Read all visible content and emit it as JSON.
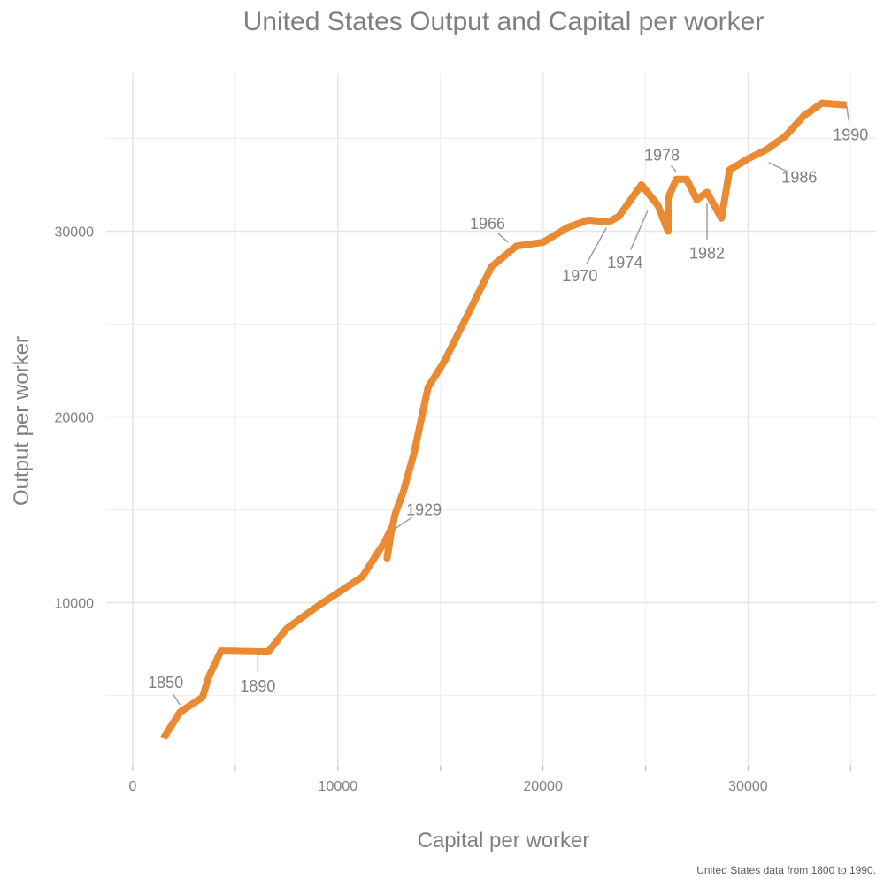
{
  "chart_data": {
    "type": "line",
    "title": "United States Output and Capital per worker",
    "xlabel": "Capital per worker",
    "ylabel": "Output per worker",
    "caption": "United States data from 1800 to 1990.",
    "xlim": [
      0,
      36000
    ],
    "ylim": [
      2000,
      38000
    ],
    "x_ticks": [
      0,
      10000,
      20000,
      30000
    ],
    "y_ticks": [
      10000,
      20000,
      30000
    ],
    "grid": true,
    "series_color": "#ea8a33",
    "series": [
      {
        "points": [
          [
            1500,
            2700
          ],
          [
            2300,
            4100
          ],
          [
            3400,
            4900
          ],
          [
            3700,
            6000
          ],
          [
            4300,
            7400
          ],
          [
            6600,
            7350
          ],
          [
            7500,
            8600
          ],
          [
            9000,
            9800
          ],
          [
            11200,
            11400
          ],
          [
            12300,
            13300
          ],
          [
            12600,
            14000
          ],
          [
            12400,
            12400
          ],
          [
            12600,
            13800
          ],
          [
            12800,
            14800
          ],
          [
            13200,
            16000
          ],
          [
            13700,
            18000
          ],
          [
            14400,
            21600
          ],
          [
            15200,
            23000
          ],
          [
            17500,
            28100
          ],
          [
            18700,
            29200
          ],
          [
            20000,
            29400
          ],
          [
            21200,
            30200
          ],
          [
            22200,
            30600
          ],
          [
            23200,
            30500
          ],
          [
            23700,
            30800
          ],
          [
            24800,
            32500
          ],
          [
            25600,
            31400
          ],
          [
            26100,
            30000
          ],
          [
            26100,
            31800
          ],
          [
            26500,
            32800
          ],
          [
            27000,
            32800
          ],
          [
            27500,
            31700
          ],
          [
            28000,
            32100
          ],
          [
            28700,
            30700
          ],
          [
            29100,
            33300
          ],
          [
            30000,
            33900
          ],
          [
            30900,
            34400
          ],
          [
            31800,
            35100
          ],
          [
            32700,
            36200
          ],
          [
            33600,
            36900
          ],
          [
            34800,
            36800
          ]
        ]
      }
    ],
    "annotations": [
      {
        "label": "1850",
        "x": 2300,
        "y": 4500,
        "text_x": 1600,
        "text_y": 5700
      },
      {
        "label": "1890",
        "x": 6100,
        "y": 7350,
        "text_x": 6100,
        "text_y": 5500
      },
      {
        "label": "1929",
        "x": 12800,
        "y": 14000,
        "text_x": 14200,
        "text_y": 15000
      },
      {
        "label": "1966",
        "x": 18300,
        "y": 29400,
        "text_x": 17300,
        "text_y": 30400
      },
      {
        "label": "1970",
        "x": 23100,
        "y": 30200,
        "text_x": 21800,
        "text_y": 27600
      },
      {
        "label": "1974",
        "x": 25100,
        "y": 31100,
        "text_x": 24000,
        "text_y": 28300
      },
      {
        "label": "1978",
        "x": 26500,
        "y": 33200,
        "text_x": 25800,
        "text_y": 34100
      },
      {
        "label": "1982",
        "x": 28000,
        "y": 31500,
        "text_x": 28000,
        "text_y": 28800
      },
      {
        "label": "1986",
        "x": 31000,
        "y": 33700,
        "text_x": 32500,
        "text_y": 32900
      },
      {
        "label": "1990",
        "x": 34800,
        "y": 36800,
        "text_x": 35000,
        "text_y": 35200
      }
    ]
  }
}
